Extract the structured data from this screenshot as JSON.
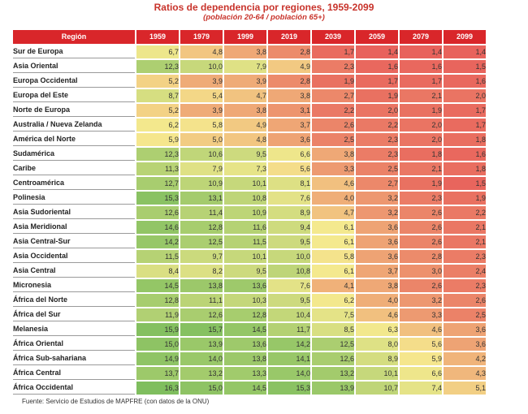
{
  "title": "Ratios de dependencia por regiones, 1959-2099",
  "subtitle": "(población 20-64 / población 65+)",
  "columns": [
    "Región",
    "1959",
    "1979",
    "1999",
    "2019",
    "2039",
    "2059",
    "2079",
    "2099"
  ],
  "rows": [
    {
      "region": "Sur de Europa",
      "values": [
        "6,7",
        "4,8",
        "3,8",
        "2,8",
        "1,7",
        "1,4",
        "1,4",
        "1,4"
      ]
    },
    {
      "region": "Asia Oriental",
      "values": [
        "12,3",
        "10,0",
        "7,9",
        "4,9",
        "2,3",
        "1,6",
        "1,6",
        "1,5"
      ]
    },
    {
      "region": "Europa Occidental",
      "values": [
        "5,2",
        "3,9",
        "3,9",
        "2,8",
        "1,9",
        "1,7",
        "1,7",
        "1,6"
      ]
    },
    {
      "region": "Europa del Este",
      "values": [
        "8,7",
        "5,4",
        "4,7",
        "3,8",
        "2,7",
        "1,9",
        "2,1",
        "2,0"
      ]
    },
    {
      "region": "Norte de Europa",
      "values": [
        "5,2",
        "3,9",
        "3,8",
        "3,1",
        "2,2",
        "2,0",
        "1,9",
        "1,7"
      ]
    },
    {
      "region": "Australia / Nueva Zelanda",
      "values": [
        "6,2",
        "5,8",
        "4,9",
        "3,7",
        "2,6",
        "2,2",
        "2,0",
        "1,7"
      ]
    },
    {
      "region": "América del Norte",
      "values": [
        "5,9",
        "5,0",
        "4,8",
        "3,6",
        "2,5",
        "2,3",
        "2,0",
        "1,8"
      ]
    },
    {
      "region": "Sudamérica",
      "values": [
        "12,3",
        "10,6",
        "9,5",
        "6,6",
        "3,8",
        "2,3",
        "1,8",
        "1,6"
      ]
    },
    {
      "region": "Caribe",
      "values": [
        "11,3",
        "7,9",
        "7,3",
        "5,6",
        "3,3",
        "2,5",
        "2,1",
        "1,8"
      ]
    },
    {
      "region": "Centroamérica",
      "values": [
        "12,7",
        "10,9",
        "10,1",
        "8,1",
        "4,6",
        "2,7",
        "1,9",
        "1,5"
      ]
    },
    {
      "region": "Polinesia",
      "values": [
        "15,3",
        "13,1",
        "10,8",
        "7,6",
        "4,0",
        "3,2",
        "2,3",
        "1,9"
      ]
    },
    {
      "region": "Asia Sudoriental",
      "values": [
        "12,6",
        "11,4",
        "10,9",
        "8,9",
        "4,7",
        "3,2",
        "2,6",
        "2,2"
      ]
    },
    {
      "region": "Asia Meridional",
      "values": [
        "14,6",
        "12,8",
        "11,6",
        "9,4",
        "6,1",
        "3,6",
        "2,6",
        "2,1"
      ]
    },
    {
      "region": "Asia Central-Sur",
      "values": [
        "14,2",
        "12,5",
        "11,5",
        "9,5",
        "6,1",
        "3,6",
        "2,6",
        "2,1"
      ]
    },
    {
      "region": "Asia Occidental",
      "values": [
        "11,5",
        "9,7",
        "10,1",
        "10,0",
        "5,8",
        "3,6",
        "2,8",
        "2,3"
      ]
    },
    {
      "region": "Asia Central",
      "values": [
        "8,4",
        "8,2",
        "9,5",
        "10,8",
        "6,1",
        "3,7",
        "3,0",
        "2,4"
      ]
    },
    {
      "region": "Micronesia",
      "values": [
        "14,5",
        "13,8",
        "13,6",
        "7,6",
        "4,1",
        "3,8",
        "2,6",
        "2,3"
      ]
    },
    {
      "region": "África del Norte",
      "values": [
        "12,8",
        "11,1",
        "10,3",
        "9,5",
        "6,2",
        "4,0",
        "3,2",
        "2,6"
      ]
    },
    {
      "region": "África del Sur",
      "values": [
        "11,9",
        "12,6",
        "12,8",
        "10,4",
        "7,5",
        "4,6",
        "3,3",
        "2,5"
      ]
    },
    {
      "region": "Melanesia",
      "values": [
        "15,9",
        "15,7",
        "14,5",
        "11,7",
        "8,5",
        "6,3",
        "4,6",
        "3,6"
      ]
    },
    {
      "region": "África Oriental",
      "values": [
        "15,0",
        "13,9",
        "13,6",
        "14,2",
        "12,5",
        "8,0",
        "5,6",
        "3,6"
      ]
    },
    {
      "region": "África Sub-sahariana",
      "values": [
        "14,9",
        "14,0",
        "13,8",
        "14,1",
        "12,6",
        "8,9",
        "5,9",
        "4,2"
      ]
    },
    {
      "region": "África Central",
      "values": [
        "13,7",
        "13,2",
        "13,3",
        "14,0",
        "13,2",
        "10,1",
        "6,6",
        "4,3"
      ]
    },
    {
      "region": "África Occidental",
      "values": [
        "16,3",
        "15,0",
        "14,5",
        "15,3",
        "13,9",
        "10,7",
        "7,4",
        "5,1"
      ]
    }
  ],
  "source": "Fuente: Servicio de Estudios de MAPFRE (con datos de la ONU)",
  "colors": {
    "header": "#d9262a",
    "title": "#c8332b",
    "scale_low": "#e8625c",
    "scale_mid": "#f5e98e",
    "scale_high": "#7fbe5e"
  }
}
